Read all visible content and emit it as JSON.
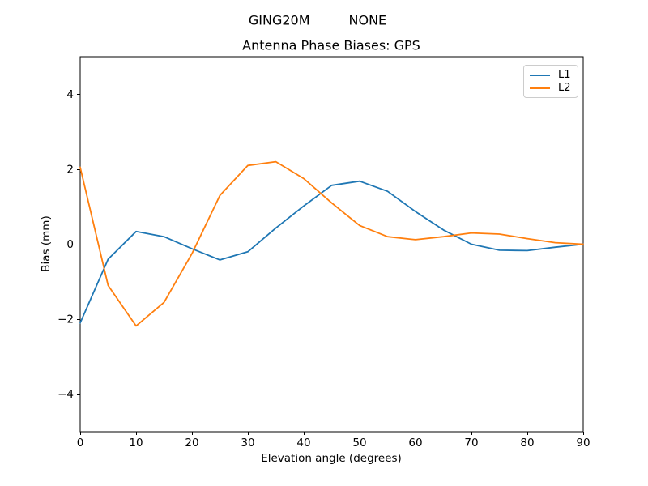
{
  "header": {
    "station": "GING20M",
    "mode": "NONE"
  },
  "chart_data": {
    "type": "line",
    "title": "Antenna Phase Biases: GPS",
    "xlabel": "Elevation angle (degrees)",
    "ylabel": "Bias (mm)",
    "xlim": [
      0,
      90
    ],
    "ylim": [
      -5,
      5
    ],
    "xticks": [
      0,
      10,
      20,
      30,
      40,
      50,
      60,
      70,
      80,
      90
    ],
    "yticks": [
      -4,
      -2,
      0,
      2,
      4
    ],
    "grid": false,
    "axis_color": "#000000",
    "legend": {
      "position": "upper right",
      "entries": [
        "L1",
        "L2"
      ]
    },
    "x": [
      0,
      5,
      10,
      15,
      20,
      25,
      30,
      35,
      40,
      45,
      50,
      55,
      60,
      65,
      70,
      75,
      80,
      85,
      90
    ],
    "series": [
      {
        "name": "L1",
        "color": "#1f77b4",
        "values": [
          -2.1,
          -0.4,
          0.34,
          0.2,
          -0.12,
          -0.42,
          -0.2,
          0.43,
          1.02,
          1.57,
          1.68,
          1.41,
          0.87,
          0.38,
          0.0,
          -0.16,
          -0.17,
          -0.08,
          0.0
        ]
      },
      {
        "name": "L2",
        "color": "#ff7f0e",
        "values": [
          2.05,
          -1.1,
          -2.18,
          -1.55,
          -0.25,
          1.3,
          2.1,
          2.2,
          1.75,
          1.1,
          0.5,
          0.2,
          0.12,
          0.2,
          0.3,
          0.27,
          0.15,
          0.04,
          0.0
        ]
      }
    ]
  }
}
